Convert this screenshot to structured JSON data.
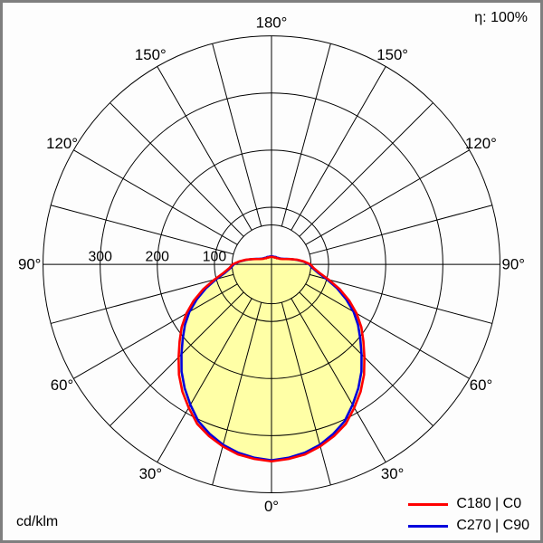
{
  "meta": {
    "efficiency_label": "η: 100%",
    "unit_label": "cd/klm"
  },
  "legend": {
    "items": [
      {
        "label": "C180 | C0",
        "color": "#ff0000"
      },
      {
        "label": "C270 | C90",
        "color": "#0000dd"
      }
    ]
  },
  "chart_data": {
    "type": "polar",
    "subtype": "luminous-intensity-distribution",
    "unit": "cd/klm",
    "efficiency": "100%",
    "fill_color": "#ffffa6",
    "grid_color": "#000000",
    "radial_axis": {
      "max": 400,
      "ticks": [
        100,
        200,
        300
      ],
      "tick_labels_shown": [
        "300",
        "200",
        "100"
      ]
    },
    "angular_axis": {
      "zero_position": "bottom",
      "spoke_step_deg": 15,
      "label_step_deg": 30,
      "labels": [
        "0°",
        "30°",
        "60°",
        "90°",
        "120°",
        "150°",
        "180°"
      ]
    },
    "angle_step_deg": 5,
    "angles_deg": [
      0,
      5,
      10,
      15,
      20,
      25,
      30,
      35,
      40,
      45,
      50,
      55,
      60,
      65,
      70,
      75,
      80,
      85,
      90,
      95,
      100,
      105,
      110,
      115,
      120,
      125,
      130,
      135,
      140,
      145,
      150,
      155,
      160,
      165,
      170,
      175,
      180
    ],
    "series": [
      {
        "name": "C180 | C0",
        "color": "#ff0000",
        "values": [
          345,
          342,
          338,
          330,
          320,
          308,
          290,
          272,
          252,
          230,
          210,
          192,
          172,
          150,
          127,
          104,
          85,
          74,
          68,
          57,
          46,
          35,
          27,
          22,
          19,
          17,
          16,
          15,
          14,
          14,
          14,
          13,
          13,
          13,
          13,
          13,
          13
        ]
      },
      {
        "name": "C270 | C90",
        "color": "#0000dd",
        "values": [
          343,
          340,
          335,
          327,
          316,
          303,
          284,
          265,
          245,
          223,
          203,
          185,
          166,
          144,
          122,
          100,
          82,
          72,
          66,
          56,
          45,
          35,
          28,
          23,
          20,
          18,
          17,
          16,
          15,
          15,
          15,
          14,
          14,
          14,
          14,
          14,
          14
        ]
      }
    ]
  }
}
